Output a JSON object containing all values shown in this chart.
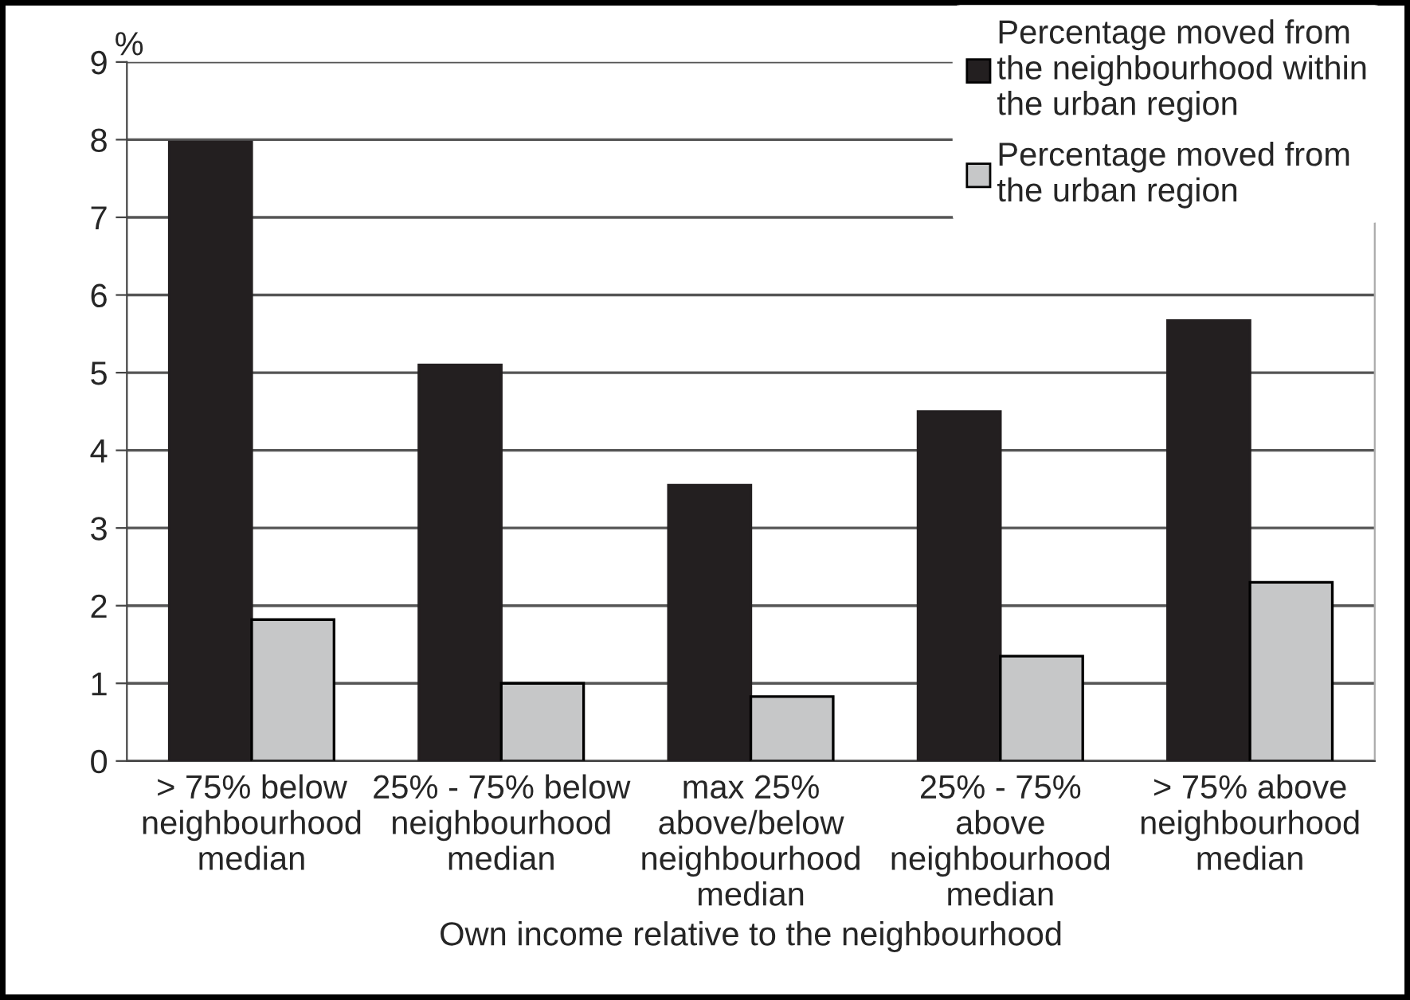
{
  "chart_data": {
    "type": "bar",
    "categories": [
      "> 75% below\nneighbourhood\nmedian",
      "25% - 75% below\nneighbourhood\nmedian",
      "max 25%\nabove/below\nneighbourhood\nmedian",
      "25% - 75%\nabove\nneighbourhood\nmedian",
      "> 75% above\nneighbourhood\nmedian"
    ],
    "series": [
      {
        "name": "Percentage moved from\nthe neighbourhood within\nthe urban region",
        "color": "#231f20",
        "values": [
          7.97,
          5.1,
          3.55,
          4.5,
          5.67
        ]
      },
      {
        "name": "Percentage moved from\nthe urban region",
        "color": "#c6c7c8",
        "values": [
          1.82,
          1.0,
          0.83,
          1.35,
          2.3
        ]
      }
    ],
    "xlabel": "Own income relative to the neighbourhood",
    "ylabel": "%",
    "ylim": [
      0,
      9
    ],
    "yticks": [
      0,
      1,
      2,
      3,
      4,
      5,
      6,
      7,
      8,
      9
    ],
    "grid": "y",
    "legend": "top right"
  }
}
